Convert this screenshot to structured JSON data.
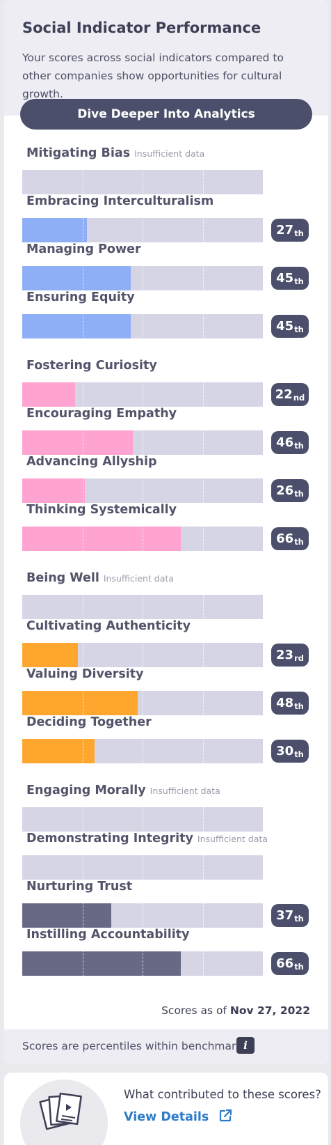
{
  "card": {
    "title": "Social Indicator Performance",
    "subtitle": "Your scores across social indicators compared to other companies show opportunities for cultural growth.",
    "cta_label": "Dive Deeper Into Analytics",
    "insufficient_text": "Insufficient data",
    "as_of_prefix": "Scores as of",
    "as_of_date": "Nov 27, 2022",
    "footer_note": "Scores are percentiles within benchmark.",
    "info_icon_glyph": "i"
  },
  "colors": {
    "blue": "#8eaef5",
    "pink": "#ffa3d1",
    "orange": "#ffa62f",
    "slate": "#676985",
    "track": "#d5d5e6",
    "badge": "#4c4f6b",
    "link": "#2e7cc8"
  },
  "indicators": [
    {
      "label": "Mitigating Bias",
      "group": "blue",
      "percentile": null,
      "badge": "",
      "suffix": ""
    },
    {
      "label": "Embracing Interculturalism",
      "group": "blue",
      "percentile": 27,
      "badge": "27",
      "suffix": "th"
    },
    {
      "label": "Managing Power",
      "group": "blue",
      "percentile": 45,
      "badge": "45",
      "suffix": "th"
    },
    {
      "label": "Ensuring Equity",
      "group": "blue",
      "percentile": 45,
      "badge": "45",
      "suffix": "th"
    },
    {
      "label": "Fostering Curiosity",
      "group": "pink",
      "percentile": 22,
      "badge": "22",
      "suffix": "nd"
    },
    {
      "label": "Encouraging Empathy",
      "group": "pink",
      "percentile": 46,
      "badge": "46",
      "suffix": "th"
    },
    {
      "label": "Advancing Allyship",
      "group": "pink",
      "percentile": 26,
      "badge": "26",
      "suffix": "th"
    },
    {
      "label": "Thinking Systemically",
      "group": "pink",
      "percentile": 66,
      "badge": "66",
      "suffix": "th"
    },
    {
      "label": "Being Well",
      "group": "orange",
      "percentile": null,
      "badge": "",
      "suffix": ""
    },
    {
      "label": "Cultivating Authenticity",
      "group": "orange",
      "percentile": 23,
      "badge": "23",
      "suffix": "rd"
    },
    {
      "label": "Valuing Diversity",
      "group": "orange",
      "percentile": 48,
      "badge": "48",
      "suffix": "th"
    },
    {
      "label": "Deciding Together",
      "group": "orange",
      "percentile": 30,
      "badge": "30",
      "suffix": "th"
    },
    {
      "label": "Engaging Morally",
      "group": "slate",
      "percentile": null,
      "badge": "",
      "suffix": ""
    },
    {
      "label": "Demonstrating Integrity",
      "group": "slate",
      "percentile": null,
      "badge": "",
      "suffix": ""
    },
    {
      "label": "Nurturing Trust",
      "group": "slate",
      "percentile": 37,
      "badge": "37",
      "suffix": "th"
    },
    {
      "label": "Instilling Accountability",
      "group": "slate",
      "percentile": 66,
      "badge": "66",
      "suffix": "th"
    }
  ],
  "details_card": {
    "question": "What contributed to these scores?",
    "link_label": "View Details",
    "icon": "documents-icon",
    "link_icon": "external-link-icon"
  }
}
